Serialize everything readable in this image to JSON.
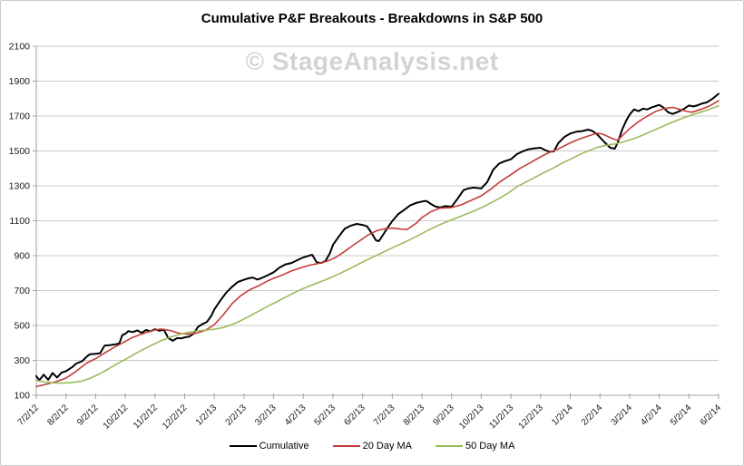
{
  "page": {
    "background": "#FFFFFF",
    "border_color": "#C9C9C9"
  },
  "watermark": {
    "text": "© StageAnalysis.net",
    "color": "#BDBDBD"
  },
  "chart_data": {
    "type": "line",
    "title": "Cumulative P&F Breakouts - Breakdowns in S&P 500",
    "xlabel": "",
    "ylabel": "",
    "ylim": [
      100,
      2100
    ],
    "y_tick_step": 200,
    "y_tick_labels": [
      "100",
      "300",
      "500",
      "700",
      "900",
      "1100",
      "1300",
      "1500",
      "1700",
      "1900",
      "2100"
    ],
    "x_tick_labels": [
      "7/2/12",
      "8/2/12",
      "9/2/12",
      "10/2/12",
      "11/2/12",
      "12/2/12",
      "1/2/13",
      "2/2/13",
      "3/2/13",
      "4/2/13",
      "5/2/13",
      "6/2/13",
      "7/2/13",
      "8/2/13",
      "9/2/13",
      "10/2/13",
      "11/2/13",
      "12/2/13",
      "1/2/14",
      "2/2/14",
      "3/2/14",
      "4/2/14",
      "5/2/14",
      "6/2/14"
    ],
    "x_unit": "months since 7/2/12 (0 - 23), fractional = intra-month position",
    "grid": "horizontal",
    "legend_position": "bottom",
    "axis_color": "#A3A3A3",
    "grid_color": "#C9C9C9",
    "tick_text_color": "#1a1a1a",
    "series": [
      {
        "name": "Cumulative",
        "color": "#000000",
        "width": 2,
        "points": [
          [
            0,
            210
          ],
          [
            0.1,
            186
          ],
          [
            0.25,
            218
          ],
          [
            0.4,
            189
          ],
          [
            0.55,
            228
          ],
          [
            0.7,
            202
          ],
          [
            0.85,
            230
          ],
          [
            1,
            238
          ],
          [
            1.2,
            260
          ],
          [
            1.35,
            282
          ],
          [
            1.55,
            296
          ],
          [
            1.7,
            322
          ],
          [
            1.8,
            335
          ],
          [
            2,
            338
          ],
          [
            2.15,
            341
          ],
          [
            2.3,
            384
          ],
          [
            2.5,
            388
          ],
          [
            2.7,
            393
          ],
          [
            2.8,
            397
          ],
          [
            2.9,
            445
          ],
          [
            3,
            452
          ],
          [
            3.1,
            468
          ],
          [
            3.25,
            462
          ],
          [
            3.4,
            472
          ],
          [
            3.55,
            458
          ],
          [
            3.7,
            474
          ],
          [
            3.85,
            467
          ],
          [
            4,
            478
          ],
          [
            4.15,
            470
          ],
          [
            4.3,
            476
          ],
          [
            4.45,
            428
          ],
          [
            4.6,
            412
          ],
          [
            4.75,
            428
          ],
          [
            4.9,
            426
          ],
          [
            5,
            432
          ],
          [
            5.15,
            436
          ],
          [
            5.3,
            452
          ],
          [
            5.45,
            492
          ],
          [
            5.6,
            508
          ],
          [
            5.75,
            520
          ],
          [
            5.9,
            555
          ],
          [
            6,
            592
          ],
          [
            6.2,
            642
          ],
          [
            6.4,
            688
          ],
          [
            6.6,
            722
          ],
          [
            6.8,
            750
          ],
          [
            7,
            762
          ],
          [
            7.15,
            770
          ],
          [
            7.3,
            775
          ],
          [
            7.45,
            763
          ],
          [
            7.6,
            772
          ],
          [
            7.8,
            788
          ],
          [
            8,
            805
          ],
          [
            8.2,
            832
          ],
          [
            8.4,
            850
          ],
          [
            8.6,
            858
          ],
          [
            8.8,
            874
          ],
          [
            9,
            890
          ],
          [
            9.15,
            898
          ],
          [
            9.3,
            905
          ],
          [
            9.45,
            862
          ],
          [
            9.6,
            858
          ],
          [
            9.75,
            870
          ],
          [
            9.9,
            915
          ],
          [
            10,
            962
          ],
          [
            10.2,
            1010
          ],
          [
            10.4,
            1055
          ],
          [
            10.6,
            1072
          ],
          [
            10.8,
            1082
          ],
          [
            11,
            1076
          ],
          [
            11.15,
            1068
          ],
          [
            11.3,
            1030
          ],
          [
            11.45,
            988
          ],
          [
            11.55,
            983
          ],
          [
            11.7,
            1022
          ],
          [
            11.85,
            1062
          ],
          [
            12,
            1098
          ],
          [
            12.2,
            1138
          ],
          [
            12.4,
            1162
          ],
          [
            12.6,
            1188
          ],
          [
            12.8,
            1202
          ],
          [
            13,
            1210
          ],
          [
            13.15,
            1214
          ],
          [
            13.3,
            1196
          ],
          [
            13.45,
            1182
          ],
          [
            13.6,
            1176
          ],
          [
            13.8,
            1184
          ],
          [
            14,
            1180
          ],
          [
            14.2,
            1226
          ],
          [
            14.4,
            1275
          ],
          [
            14.55,
            1285
          ],
          [
            14.75,
            1290
          ],
          [
            15,
            1285
          ],
          [
            15.2,
            1322
          ],
          [
            15.4,
            1392
          ],
          [
            15.6,
            1428
          ],
          [
            15.8,
            1442
          ],
          [
            16,
            1452
          ],
          [
            16.2,
            1482
          ],
          [
            16.4,
            1498
          ],
          [
            16.6,
            1510
          ],
          [
            16.8,
            1515
          ],
          [
            17,
            1518
          ],
          [
            17.15,
            1505
          ],
          [
            17.3,
            1495
          ],
          [
            17.45,
            1498
          ],
          [
            17.6,
            1545
          ],
          [
            17.8,
            1580
          ],
          [
            18,
            1600
          ],
          [
            18.2,
            1610
          ],
          [
            18.4,
            1614
          ],
          [
            18.6,
            1622
          ],
          [
            18.75,
            1615
          ],
          [
            18.9,
            1596
          ],
          [
            19,
            1578
          ],
          [
            19.2,
            1542
          ],
          [
            19.35,
            1518
          ],
          [
            19.5,
            1513
          ],
          [
            19.6,
            1548
          ],
          [
            19.75,
            1622
          ],
          [
            19.9,
            1678
          ],
          [
            20,
            1708
          ],
          [
            20.15,
            1738
          ],
          [
            20.3,
            1728
          ],
          [
            20.45,
            1742
          ],
          [
            20.6,
            1738
          ],
          [
            20.75,
            1750
          ],
          [
            21,
            1764
          ],
          [
            21.15,
            1748
          ],
          [
            21.3,
            1722
          ],
          [
            21.45,
            1712
          ],
          [
            21.6,
            1722
          ],
          [
            21.8,
            1738
          ],
          [
            22,
            1760
          ],
          [
            22.15,
            1755
          ],
          [
            22.3,
            1762
          ],
          [
            22.45,
            1772
          ],
          [
            22.6,
            1778
          ],
          [
            22.8,
            1800
          ],
          [
            23,
            1828
          ]
        ]
      },
      {
        "name": "20 Day MA",
        "color": "#C43D38",
        "width": 1.6,
        "points": [
          [
            0,
            150
          ],
          [
            0.3,
            162
          ],
          [
            0.6,
            175
          ],
          [
            1,
            198
          ],
          [
            1.35,
            238
          ],
          [
            1.7,
            285
          ],
          [
            2,
            310
          ],
          [
            2.3,
            342
          ],
          [
            2.6,
            372
          ],
          [
            2.9,
            400
          ],
          [
            3.2,
            428
          ],
          [
            3.5,
            448
          ],
          [
            3.8,
            464
          ],
          [
            4,
            474
          ],
          [
            4.2,
            480
          ],
          [
            4.5,
            472
          ],
          [
            4.8,
            456
          ],
          [
            5.1,
            450
          ],
          [
            5.4,
            456
          ],
          [
            5.7,
            472
          ],
          [
            6,
            505
          ],
          [
            6.3,
            560
          ],
          [
            6.6,
            625
          ],
          [
            6.9,
            672
          ],
          [
            7.2,
            705
          ],
          [
            7.5,
            728
          ],
          [
            7.8,
            755
          ],
          [
            8,
            770
          ],
          [
            8.3,
            790
          ],
          [
            8.6,
            812
          ],
          [
            8.9,
            830
          ],
          [
            9.2,
            845
          ],
          [
            9.5,
            855
          ],
          [
            9.8,
            868
          ],
          [
            10.1,
            890
          ],
          [
            10.4,
            925
          ],
          [
            10.7,
            962
          ],
          [
            10.9,
            985
          ],
          [
            11.2,
            1020
          ],
          [
            11.5,
            1045
          ],
          [
            11.8,
            1056
          ],
          [
            12,
            1058
          ],
          [
            12.3,
            1052
          ],
          [
            12.5,
            1050
          ],
          [
            12.8,
            1085
          ],
          [
            13,
            1118
          ],
          [
            13.3,
            1152
          ],
          [
            13.6,
            1172
          ],
          [
            14,
            1176
          ],
          [
            14.3,
            1190
          ],
          [
            14.6,
            1212
          ],
          [
            15,
            1243
          ],
          [
            15.3,
            1278
          ],
          [
            15.6,
            1320
          ],
          [
            16,
            1364
          ],
          [
            16.3,
            1400
          ],
          [
            16.6,
            1428
          ],
          [
            17,
            1466
          ],
          [
            17.3,
            1492
          ],
          [
            17.6,
            1512
          ],
          [
            18,
            1546
          ],
          [
            18.3,
            1568
          ],
          [
            18.6,
            1585
          ],
          [
            18.9,
            1602
          ],
          [
            19.1,
            1596
          ],
          [
            19.4,
            1572
          ],
          [
            19.6,
            1562
          ],
          [
            19.8,
            1595
          ],
          [
            20,
            1628
          ],
          [
            20.3,
            1668
          ],
          [
            20.6,
            1700
          ],
          [
            20.9,
            1728
          ],
          [
            21.2,
            1744
          ],
          [
            21.45,
            1750
          ],
          [
            21.7,
            1738
          ],
          [
            21.9,
            1728
          ],
          [
            22.1,
            1722
          ],
          [
            22.4,
            1738
          ],
          [
            22.7,
            1758
          ],
          [
            23,
            1788
          ]
        ]
      },
      {
        "name": "50 Day MA",
        "color": "#9BBB59",
        "width": 1.6,
        "points": [
          [
            0,
            185
          ],
          [
            0.3,
            176
          ],
          [
            0.6,
            171
          ],
          [
            0.9,
            170
          ],
          [
            1.2,
            173
          ],
          [
            1.5,
            180
          ],
          [
            1.8,
            196
          ],
          [
            2.1,
            220
          ],
          [
            2.4,
            248
          ],
          [
            2.7,
            278
          ],
          [
            3,
            305
          ],
          [
            3.3,
            335
          ],
          [
            3.6,
            362
          ],
          [
            3.9,
            388
          ],
          [
            4.2,
            412
          ],
          [
            4.5,
            432
          ],
          [
            4.8,
            448
          ],
          [
            5.1,
            460
          ],
          [
            5.4,
            468
          ],
          [
            5.7,
            473
          ],
          [
            6,
            478
          ],
          [
            6.3,
            488
          ],
          [
            6.6,
            505
          ],
          [
            6.9,
            528
          ],
          [
            7.2,
            555
          ],
          [
            7.5,
            582
          ],
          [
            7.8,
            610
          ],
          [
            8.1,
            635
          ],
          [
            8.4,
            662
          ],
          [
            8.7,
            688
          ],
          [
            9,
            712
          ],
          [
            9.3,
            732
          ],
          [
            9.6,
            752
          ],
          [
            9.9,
            772
          ],
          [
            10.2,
            795
          ],
          [
            10.5,
            820
          ],
          [
            10.8,
            846
          ],
          [
            11.1,
            872
          ],
          [
            11.4,
            896
          ],
          [
            11.7,
            920
          ],
          [
            12,
            945
          ],
          [
            12.3,
            968
          ],
          [
            12.6,
            992
          ],
          [
            12.9,
            1018
          ],
          [
            13.2,
            1045
          ],
          [
            13.5,
            1070
          ],
          [
            13.8,
            1092
          ],
          [
            14.1,
            1112
          ],
          [
            14.4,
            1132
          ],
          [
            14.7,
            1152
          ],
          [
            15,
            1175
          ],
          [
            15.3,
            1200
          ],
          [
            15.6,
            1228
          ],
          [
            15.9,
            1258
          ],
          [
            16.2,
            1295
          ],
          [
            16.5,
            1322
          ],
          [
            16.8,
            1348
          ],
          [
            17.1,
            1375
          ],
          [
            17.4,
            1400
          ],
          [
            17.7,
            1428
          ],
          [
            18,
            1452
          ],
          [
            18.3,
            1478
          ],
          [
            18.6,
            1500
          ],
          [
            18.9,
            1520
          ],
          [
            19.2,
            1532
          ],
          [
            19.5,
            1540
          ],
          [
            19.8,
            1552
          ],
          [
            20.1,
            1568
          ],
          [
            20.4,
            1588
          ],
          [
            20.7,
            1610
          ],
          [
            21,
            1632
          ],
          [
            21.3,
            1655
          ],
          [
            21.6,
            1675
          ],
          [
            21.9,
            1695
          ],
          [
            22.2,
            1712
          ],
          [
            22.5,
            1728
          ],
          [
            22.8,
            1745
          ],
          [
            23,
            1758
          ]
        ]
      }
    ]
  }
}
